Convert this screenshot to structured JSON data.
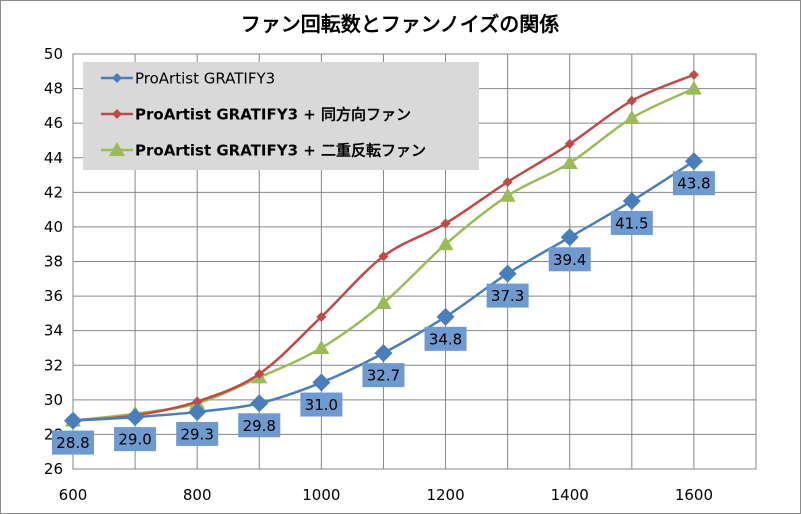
{
  "chart_data": {
    "type": "line",
    "title": "ファン回転数とファンノイズの関係",
    "xlabel": "",
    "ylabel": "",
    "x": [
      600,
      700,
      800,
      900,
      1000,
      1100,
      1200,
      1300,
      1400,
      1500,
      1600
    ],
    "x_ticks": [
      600,
      800,
      1000,
      1200,
      1400,
      1600
    ],
    "xlim": [
      600,
      1700
    ],
    "y_ticks": [
      26,
      28,
      30,
      32,
      34,
      36,
      38,
      40,
      42,
      44,
      46,
      48,
      50
    ],
    "ylim": [
      26,
      50
    ],
    "grid": "vertical and horizontal",
    "legend_position": "top-left",
    "legend_background": "#d9d9d9",
    "series": [
      {
        "name": "ProArtist GRATIFY3",
        "name_bold": false,
        "color": "#4a7ebb",
        "marker": "diamond",
        "data_labels": true,
        "label_background": "#6f9ad0",
        "values": [
          28.8,
          29.0,
          29.3,
          29.8,
          31.0,
          32.7,
          34.8,
          37.3,
          39.4,
          41.5,
          43.8
        ]
      },
      {
        "name": "ProArtist  GRATIFY3 + 同方向ファン",
        "name_bold": true,
        "color": "#be4b48",
        "marker": "diamond-small",
        "data_labels": false,
        "values": [
          28.8,
          29.1,
          29.9,
          31.5,
          34.8,
          38.3,
          40.2,
          42.6,
          44.8,
          47.3,
          48.8
        ]
      },
      {
        "name": "ProArtist  GRATIFY3 + 二重反転ファン",
        "name_bold": true,
        "color": "#9bbb59",
        "marker": "triangle",
        "data_labels": false,
        "values": [
          28.8,
          29.2,
          29.8,
          31.3,
          33.0,
          35.6,
          39.0,
          41.8,
          43.7,
          46.3,
          48.0
        ]
      }
    ]
  }
}
